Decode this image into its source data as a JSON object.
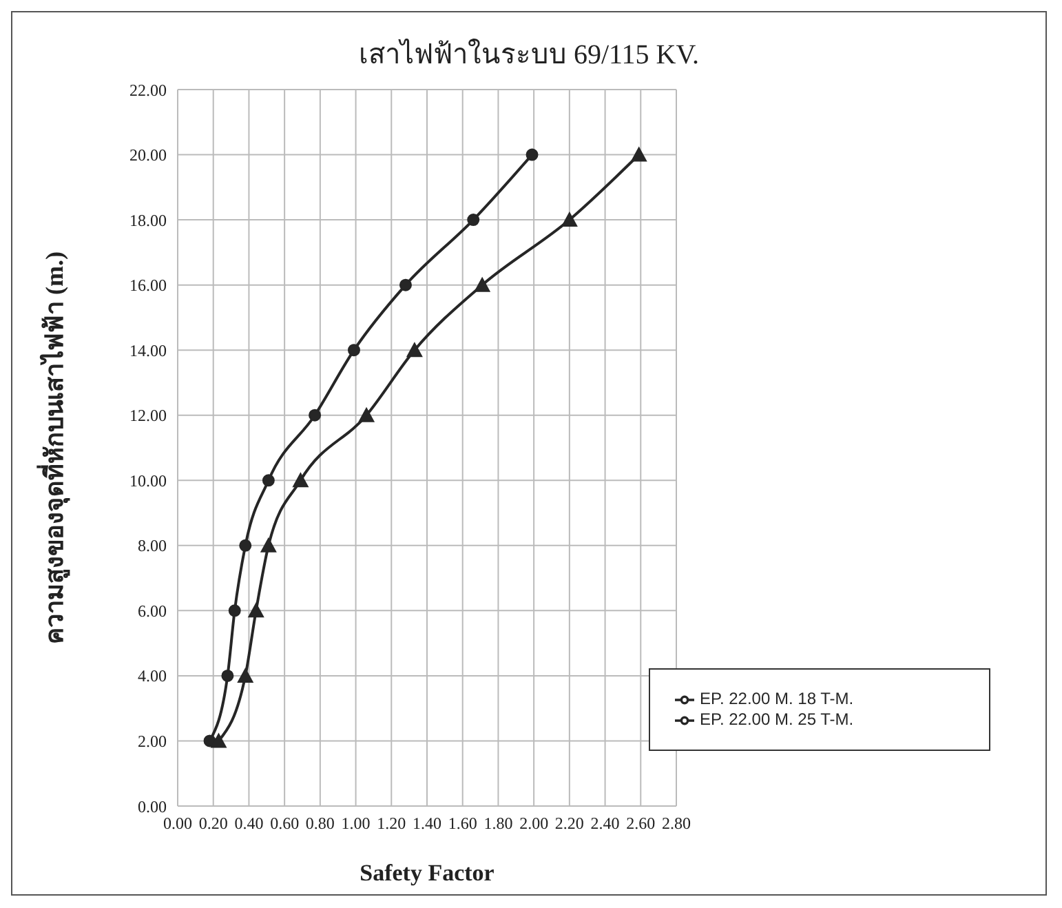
{
  "chart_data": {
    "type": "line",
    "title": "เสาไฟฟ้าในระบบ 69/115 KV.",
    "xlabel": "Safety Factor",
    "ylabel": "ความสูงของจุดที่หักบนเสาไฟฟ้า (m.)",
    "xlim": [
      0,
      2.8
    ],
    "xticks": [
      {
        "value": 0,
        "label": "0.00"
      },
      {
        "value": 0.2,
        "label": "0.20"
      },
      {
        "value": 0.4,
        "label": "0.40"
      },
      {
        "value": 0.6,
        "label": "0.60"
      },
      {
        "value": 0.8,
        "label": "0.80"
      },
      {
        "value": 1,
        "label": "1.00"
      },
      {
        "value": 1.2,
        "label": "1.20"
      },
      {
        "value": 1.4,
        "label": "1.40"
      },
      {
        "value": 1.6,
        "label": "1.60"
      },
      {
        "value": 1.8,
        "label": "1.80"
      },
      {
        "value": 2,
        "label": "2.00"
      },
      {
        "value": 2.2,
        "label": "2.20"
      },
      {
        "value": 2.4,
        "label": "2.40"
      },
      {
        "value": 2.6,
        "label": "2.60"
      },
      {
        "value": 2.8,
        "label": "2.80"
      }
    ],
    "ylim": [
      0,
      22
    ],
    "yticks": [
      {
        "value": 0,
        "label": "0.00"
      },
      {
        "value": 2,
        "label": "2.00"
      },
      {
        "value": 4,
        "label": "4.00"
      },
      {
        "value": 6,
        "label": "6.00"
      },
      {
        "value": 8,
        "label": "8.00"
      },
      {
        "value": 10,
        "label": "10.00"
      },
      {
        "value": 12,
        "label": "12.00"
      },
      {
        "value": 14,
        "label": "14.00"
      },
      {
        "value": 16,
        "label": "16.00"
      },
      {
        "value": 18,
        "label": "18.00"
      },
      {
        "value": 20,
        "label": "20.00"
      },
      {
        "value": 22,
        "label": "22.00"
      }
    ],
    "grid": true,
    "legend": "bottom right",
    "line_style": "solid",
    "series": [
      {
        "name": "EP. 22.00 M. 18 T-M.",
        "color": "#262626",
        "marker": "circle",
        "x": [
          0.18,
          0.28,
          0.32,
          0.38,
          0.51,
          0.77,
          0.99,
          1.28,
          1.66,
          1.99
        ],
        "values": [
          2,
          4,
          6,
          8,
          10,
          12,
          14,
          16,
          18,
          20
        ]
      },
      {
        "name": "EP. 22.00 M. 25 T-M.",
        "color": "#262626",
        "marker": "triangle",
        "x": [
          0.23,
          0.38,
          0.44,
          0.51,
          0.69,
          1.06,
          1.33,
          1.71,
          2.2,
          2.59
        ],
        "values": [
          2,
          4,
          6,
          8,
          10,
          12,
          14,
          16,
          18,
          20
        ]
      }
    ]
  }
}
